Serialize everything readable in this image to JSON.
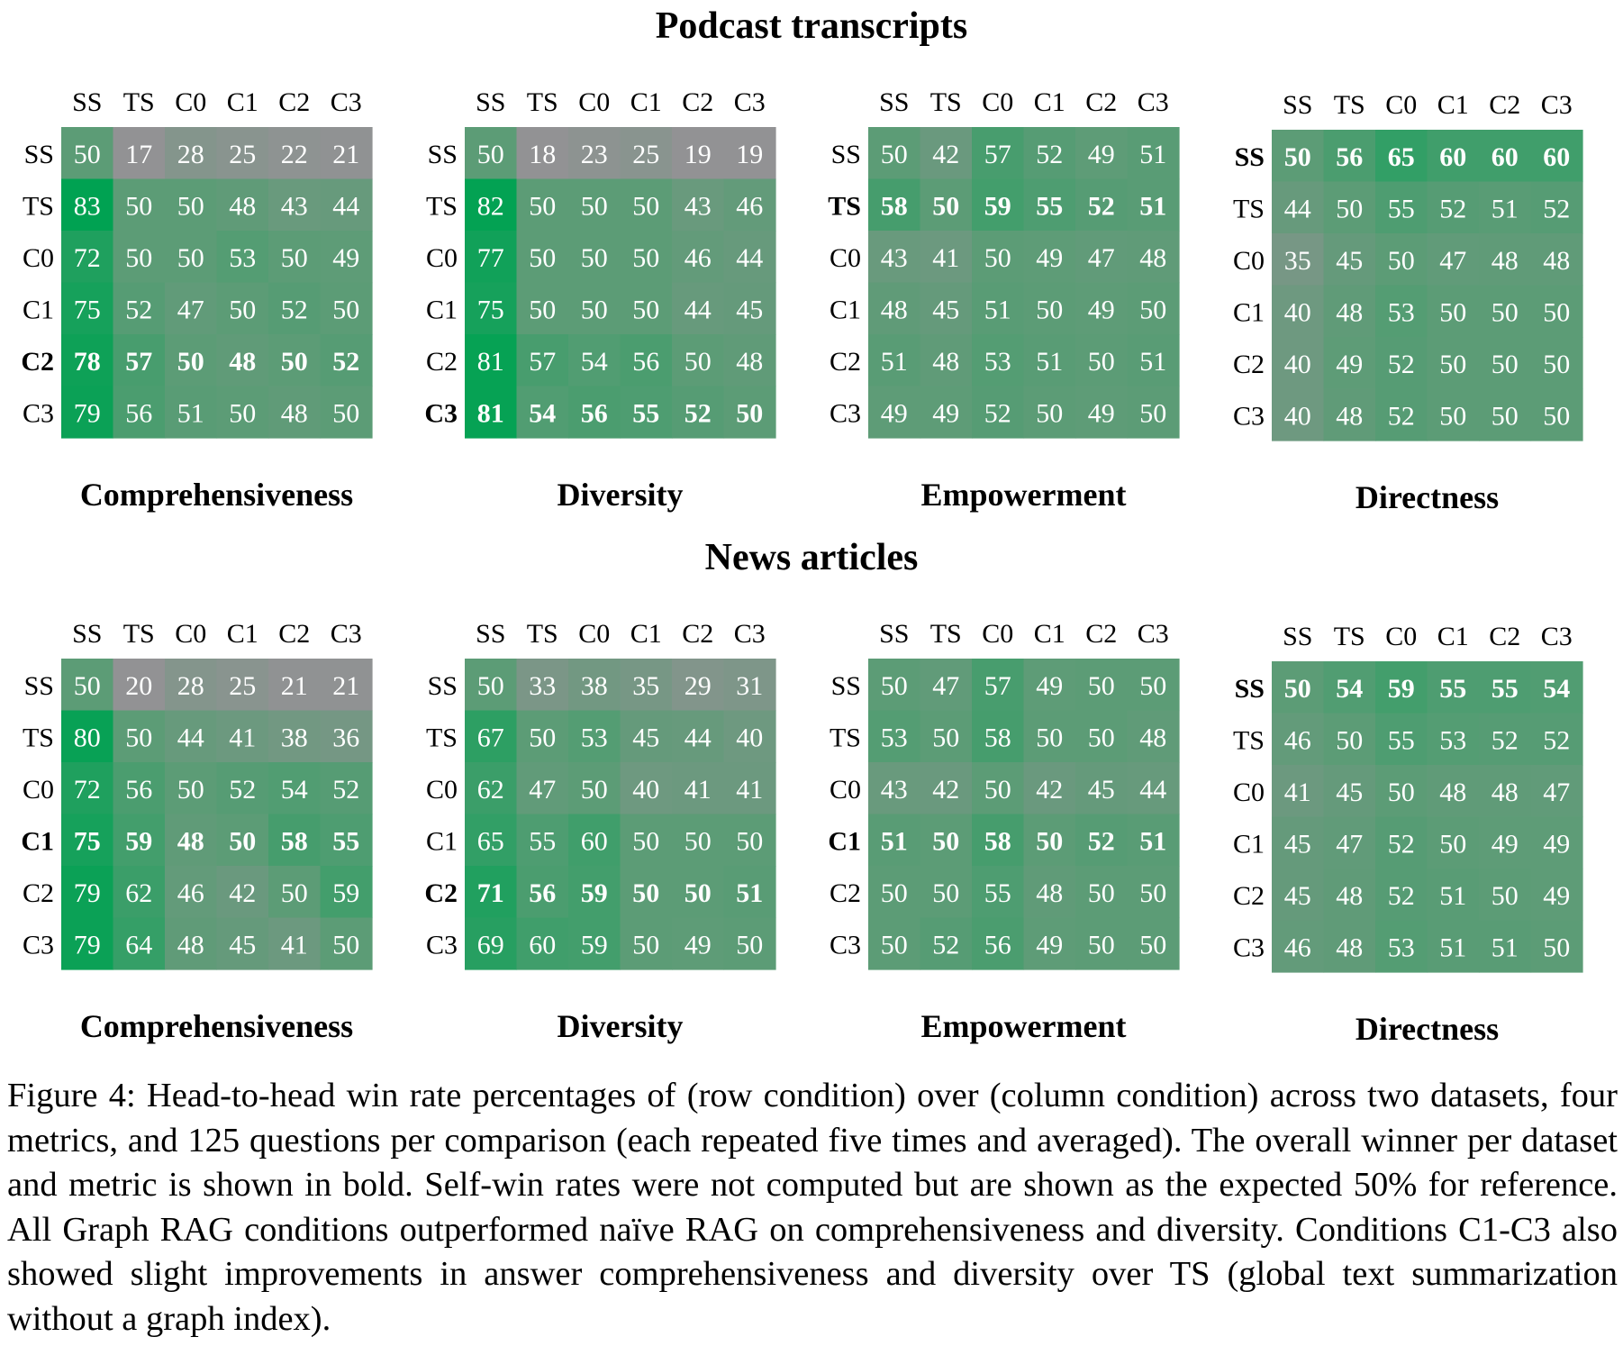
{
  "row_labels": [
    "SS",
    "TS",
    "C0",
    "C1",
    "C2",
    "C3"
  ],
  "col_labels": [
    "SS",
    "TS",
    "C0",
    "C1",
    "C2",
    "C3"
  ],
  "chart_data": [
    {
      "dataset": "Podcast transcripts",
      "panels": [
        {
          "type": "heatmap",
          "title": "Comprehensiveness",
          "bold_row": "C2",
          "values": [
            [
              50,
              17,
              28,
              25,
              22,
              21
            ],
            [
              83,
              50,
              50,
              48,
              43,
              44
            ],
            [
              72,
              50,
              50,
              53,
              50,
              49
            ],
            [
              75,
              52,
              47,
              50,
              52,
              50
            ],
            [
              78,
              57,
              50,
              48,
              50,
              52
            ],
            [
              79,
              56,
              51,
              50,
              48,
              50
            ]
          ]
        },
        {
          "type": "heatmap",
          "title": "Diversity",
          "bold_row": "C3",
          "values": [
            [
              50,
              18,
              23,
              25,
              19,
              19
            ],
            [
              82,
              50,
              50,
              50,
              43,
              46
            ],
            [
              77,
              50,
              50,
              50,
              46,
              44
            ],
            [
              75,
              50,
              50,
              50,
              44,
              45
            ],
            [
              81,
              57,
              54,
              56,
              50,
              48
            ],
            [
              81,
              54,
              56,
              55,
              52,
              50
            ]
          ]
        },
        {
          "type": "heatmap",
          "title": "Empowerment",
          "bold_row": "TS",
          "values": [
            [
              50,
              42,
              57,
              52,
              49,
              51
            ],
            [
              58,
              50,
              59,
              55,
              52,
              51
            ],
            [
              43,
              41,
              50,
              49,
              47,
              48
            ],
            [
              48,
              45,
              51,
              50,
              49,
              50
            ],
            [
              51,
              48,
              53,
              51,
              50,
              51
            ],
            [
              49,
              49,
              52,
              50,
              49,
              50
            ]
          ]
        },
        {
          "type": "heatmap",
          "title": "Directness",
          "bold_row": "SS",
          "values": [
            [
              50,
              56,
              65,
              60,
              60,
              60
            ],
            [
              44,
              50,
              55,
              52,
              51,
              52
            ],
            [
              35,
              45,
              50,
              47,
              48,
              48
            ],
            [
              40,
              48,
              53,
              50,
              50,
              50
            ],
            [
              40,
              49,
              52,
              50,
              50,
              50
            ],
            [
              40,
              48,
              52,
              50,
              50,
              50
            ]
          ]
        }
      ]
    },
    {
      "dataset": "News articles",
      "panels": [
        {
          "type": "heatmap",
          "title": "Comprehensiveness",
          "bold_row": "C1",
          "values": [
            [
              50,
              20,
              28,
              25,
              21,
              21
            ],
            [
              80,
              50,
              44,
              41,
              38,
              36
            ],
            [
              72,
              56,
              50,
              52,
              54,
              52
            ],
            [
              75,
              59,
              48,
              50,
              58,
              55
            ],
            [
              79,
              62,
              46,
              42,
              50,
              59
            ],
            [
              79,
              64,
              48,
              45,
              41,
              50
            ]
          ]
        },
        {
          "type": "heatmap",
          "title": "Diversity",
          "bold_row": "C2",
          "values": [
            [
              50,
              33,
              38,
              35,
              29,
              31
            ],
            [
              67,
              50,
              53,
              45,
              44,
              40
            ],
            [
              62,
              47,
              50,
              40,
              41,
              41
            ],
            [
              65,
              55,
              60,
              50,
              50,
              50
            ],
            [
              71,
              56,
              59,
              50,
              50,
              51
            ],
            [
              69,
              60,
              59,
              50,
              49,
              50
            ]
          ]
        },
        {
          "type": "heatmap",
          "title": "Empowerment",
          "bold_row": "C1",
          "values": [
            [
              50,
              47,
              57,
              49,
              50,
              50
            ],
            [
              53,
              50,
              58,
              50,
              50,
              48
            ],
            [
              43,
              42,
              50,
              42,
              45,
              44
            ],
            [
              51,
              50,
              58,
              50,
              52,
              51
            ],
            [
              50,
              50,
              55,
              48,
              50,
              50
            ],
            [
              50,
              52,
              56,
              49,
              50,
              50
            ]
          ]
        },
        {
          "type": "heatmap",
          "title": "Directness",
          "bold_row": "SS",
          "values": [
            [
              50,
              54,
              59,
              55,
              55,
              54
            ],
            [
              46,
              50,
              55,
              53,
              52,
              52
            ],
            [
              41,
              45,
              50,
              48,
              48,
              47
            ],
            [
              45,
              47,
              52,
              50,
              49,
              49
            ],
            [
              45,
              48,
              52,
              51,
              50,
              49
            ],
            [
              46,
              48,
              53,
              51,
              51,
              50
            ]
          ]
        }
      ]
    }
  ],
  "caption": "Figure 4: Head-to-head win rate percentages of (row condition) over (column condition) across two datasets, four metrics, and 125 questions per comparison (each repeated five times and averaged). The overall winner per dataset and metric is shown in bold. Self-win rates were not computed but are shown as the expected 50% for reference. All Graph RAG conditions outperformed naïve RAG on comprehensiveness and diversity. Conditions C1-C3 also showed slight improvements in answer comprehensiveness and diversity over TS (global text summarization without a graph index)."
}
